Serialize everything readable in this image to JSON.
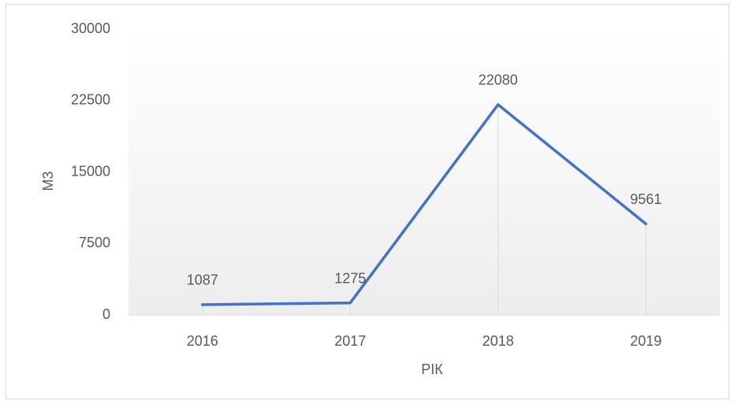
{
  "chart_data": {
    "type": "line",
    "x_label": "РІК",
    "y_label": "М3",
    "categories": [
      "2016",
      "2017",
      "2018",
      "2019"
    ],
    "values": [
      1087,
      1275,
      22080,
      9561
    ],
    "color": "#4472c4",
    "ylim": [
      0,
      30000
    ],
    "yticks": [
      0,
      7500,
      15000,
      22500,
      30000
    ],
    "drop_lines": true
  }
}
